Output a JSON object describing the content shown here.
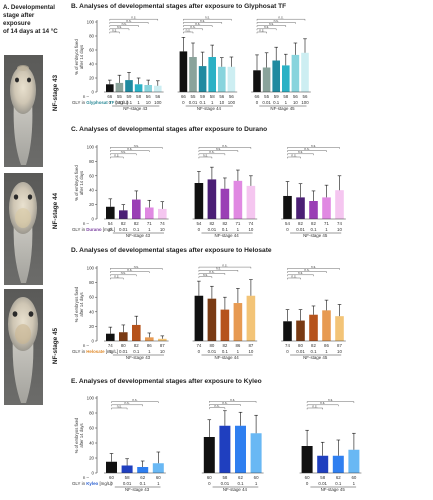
{
  "panel_a": {
    "title_lines": [
      "A. Developmental",
      "stage after",
      "exposure",
      "of 14 days at 14 °C"
    ],
    "photos": [
      {
        "label": "NF-stage 43"
      },
      {
        "label": "NF-stage 44"
      },
      {
        "label": "NF-stage 45"
      }
    ]
  },
  "common": {
    "n_label": "n –",
    "unit_label": "[mg/L]",
    "sig_label": "n.s.",
    "ylabel_lines": [
      "% of embryos fixed",
      "after 14 days"
    ]
  },
  "chart_data": [
    {
      "type": "bar",
      "title": "B. Analyses of developmental stages after exposure to Glyphosat TF",
      "substance_prefix": "GLY in",
      "substance": "Glyphosat TF",
      "substance_color": "#2b8a97",
      "ylim": [
        0,
        100
      ],
      "yticks": [
        0,
        20,
        40,
        60,
        80,
        100
      ],
      "concentrations": [
        "0",
        "0.01",
        "0.1",
        "1",
        "10",
        "100"
      ],
      "colors": [
        "#111111",
        "#8aa39b",
        "#1f8aa0",
        "#2bb1c5",
        "#88d4dd",
        "#cdeef2"
      ],
      "groups": [
        {
          "name": "NF-stage 43",
          "n": [
            "66",
            "55",
            "59",
            "58",
            "56",
            "56"
          ],
          "values": [
            11,
            13,
            17,
            11,
            10,
            9
          ],
          "errors": [
            6,
            11,
            11,
            9,
            7,
            7
          ]
        },
        {
          "name": "NF-stage 44",
          "n": [
            "66",
            "55",
            "59",
            "58",
            "56",
            "56"
          ],
          "values": [
            58,
            50,
            37,
            50,
            36,
            36
          ],
          "errors": [
            20,
            20,
            20,
            17,
            13,
            14
          ]
        },
        {
          "name": "NF-stage 45",
          "n": [
            "66",
            "55",
            "59",
            "58",
            "56",
            "56"
          ],
          "values": [
            31,
            35,
            45,
            38,
            53,
            56
          ],
          "errors": [
            22,
            21,
            19,
            16,
            17,
            20
          ]
        }
      ]
    },
    {
      "type": "bar",
      "title": "C. Analyses of developmental stages after exposure to Durano",
      "substance_prefix": "GLY in",
      "substance": "Durano",
      "substance_color": "#7b3fa0",
      "ylim": [
        0,
        100
      ],
      "yticks": [
        0,
        20,
        40,
        60,
        80,
        100
      ],
      "concentrations": [
        "0",
        "0.01",
        "0.1",
        "1",
        "10"
      ],
      "colors": [
        "#111111",
        "#4b1f75",
        "#9a3fb5",
        "#e089e2",
        "#f5c6f0"
      ],
      "groups": [
        {
          "name": "NF-stage 43",
          "n": [
            "54",
            "82",
            "82",
            "71",
            "74"
          ],
          "values": [
            17,
            12,
            27,
            16,
            14
          ],
          "errors": [
            11,
            8,
            12,
            10,
            10
          ]
        },
        {
          "name": "NF-stage 44",
          "n": [
            "54",
            "82",
            "82",
            "71",
            "74"
          ],
          "values": [
            50,
            55,
            42,
            53,
            46
          ],
          "errors": [
            16,
            17,
            15,
            15,
            14
          ]
        },
        {
          "name": "NF-stage 45",
          "n": [
            "54",
            "82",
            "82",
            "71",
            "74"
          ],
          "values": [
            32,
            30,
            25,
            30,
            40
          ],
          "errors": [
            20,
            19,
            14,
            17,
            20
          ]
        }
      ]
    },
    {
      "type": "bar",
      "title": "D. Analyses of developmental stages after exposure to Helosate",
      "substance_prefix": "GLY in",
      "substance": "Helosate",
      "substance_color": "#e08a2a",
      "ylim": [
        0,
        100
      ],
      "yticks": [
        0,
        20,
        40,
        60,
        80,
        100
      ],
      "concentrations": [
        "0",
        "0.01",
        "0.1",
        "1",
        "10"
      ],
      "colors": [
        "#111111",
        "#7a3b14",
        "#b6531c",
        "#e79a52",
        "#f3c477"
      ],
      "groups": [
        {
          "name": "NF-stage 43",
          "n": [
            "74",
            "80",
            "82",
            "86",
            "87"
          ],
          "values": [
            10,
            12,
            22,
            5,
            3
          ],
          "errors": [
            9,
            10,
            12,
            6,
            4
          ]
        },
        {
          "name": "NF-stage 44",
          "n": [
            "74",
            "80",
            "82",
            "86",
            "87"
          ],
          "values": [
            62,
            58,
            43,
            52,
            62
          ],
          "errors": [
            20,
            17,
            17,
            20,
            22
          ]
        },
        {
          "name": "NF-stage 45",
          "n": [
            "74",
            "80",
            "82",
            "86",
            "87"
          ],
          "values": [
            27,
            28,
            36,
            42,
            34
          ],
          "errors": [
            16,
            15,
            12,
            14,
            16
          ]
        }
      ]
    },
    {
      "type": "bar",
      "title": "E. Analyses of developmental stages after exposure to Kyleo",
      "substance_prefix": "GLY in",
      "substance": "Kyleo",
      "substance_color": "#2a5fd0",
      "ylim": [
        0,
        100
      ],
      "yticks": [
        0,
        20,
        40,
        60,
        80,
        100
      ],
      "concentrations": [
        "0",
        "0.01",
        "0.1",
        "1"
      ],
      "colors": [
        "#111111",
        "#1f3fbf",
        "#2f7ff0",
        "#69b8f4"
      ],
      "groups": [
        {
          "name": "NF-stage 43",
          "n": [
            "60",
            "58",
            "62",
            "60"
          ],
          "values": [
            15,
            10,
            8,
            13
          ],
          "errors": [
            11,
            9,
            8,
            15
          ]
        },
        {
          "name": "NF-stage 44",
          "n": [
            "60",
            "58",
            "62",
            "60"
          ],
          "values": [
            48,
            63,
            63,
            53
          ],
          "errors": [
            23,
            20,
            18,
            24
          ]
        },
        {
          "name": "NF-stage 45",
          "n": [
            "60",
            "58",
            "62",
            "60"
          ],
          "values": [
            36,
            23,
            23,
            31
          ],
          "errors": [
            21,
            18,
            21,
            22
          ]
        }
      ]
    }
  ]
}
